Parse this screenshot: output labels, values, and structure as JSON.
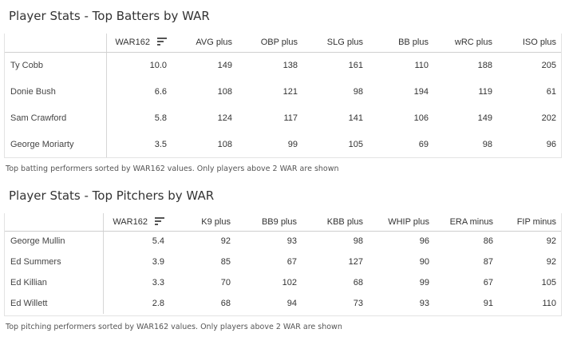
{
  "batters": {
    "title": "Player Stats - Top Batters by WAR",
    "columns": [
      "WAR162",
      "AVG plus",
      "OBP plus",
      "SLG plus",
      "BB plus",
      "wRC plus",
      "ISO plus"
    ],
    "rows": [
      {
        "name": "Ty Cobb",
        "values": [
          "10.0",
          "149",
          "138",
          "161",
          "110",
          "188",
          "205"
        ]
      },
      {
        "name": "Donie Bush",
        "values": [
          "6.6",
          "108",
          "121",
          "98",
          "194",
          "119",
          "61"
        ]
      },
      {
        "name": "Sam Crawford",
        "values": [
          "5.8",
          "124",
          "117",
          "141",
          "106",
          "149",
          "202"
        ]
      },
      {
        "name": "George Moriarty",
        "values": [
          "3.5",
          "108",
          "99",
          "105",
          "69",
          "98",
          "96"
        ]
      }
    ],
    "caption": "Top batting performers sorted by WAR162 values. Only players above 2 WAR are shown"
  },
  "pitchers": {
    "title": "Player Stats - Top Pitchers by WAR",
    "columns": [
      "WAR162",
      "K9 plus",
      "BB9 plus",
      "KBB plus",
      "WHIP plus",
      "ERA minus",
      "FIP minus"
    ],
    "rows": [
      {
        "name": "George Mullin",
        "values": [
          "5.4",
          "92",
          "93",
          "98",
          "96",
          "86",
          "92"
        ]
      },
      {
        "name": "Ed Summers",
        "values": [
          "3.9",
          "85",
          "67",
          "127",
          "90",
          "87",
          "92"
        ]
      },
      {
        "name": "Ed Killian",
        "values": [
          "3.3",
          "70",
          "102",
          "68",
          "99",
          "67",
          "105"
        ]
      },
      {
        "name": "Ed Willett",
        "values": [
          "2.8",
          "68",
          "94",
          "73",
          "93",
          "91",
          "110"
        ]
      }
    ],
    "caption": "Top pitching performers sorted by WAR162 values. Only players above 2 WAR are shown"
  },
  "icons": {
    "sort": "sort-descending-icon"
  }
}
